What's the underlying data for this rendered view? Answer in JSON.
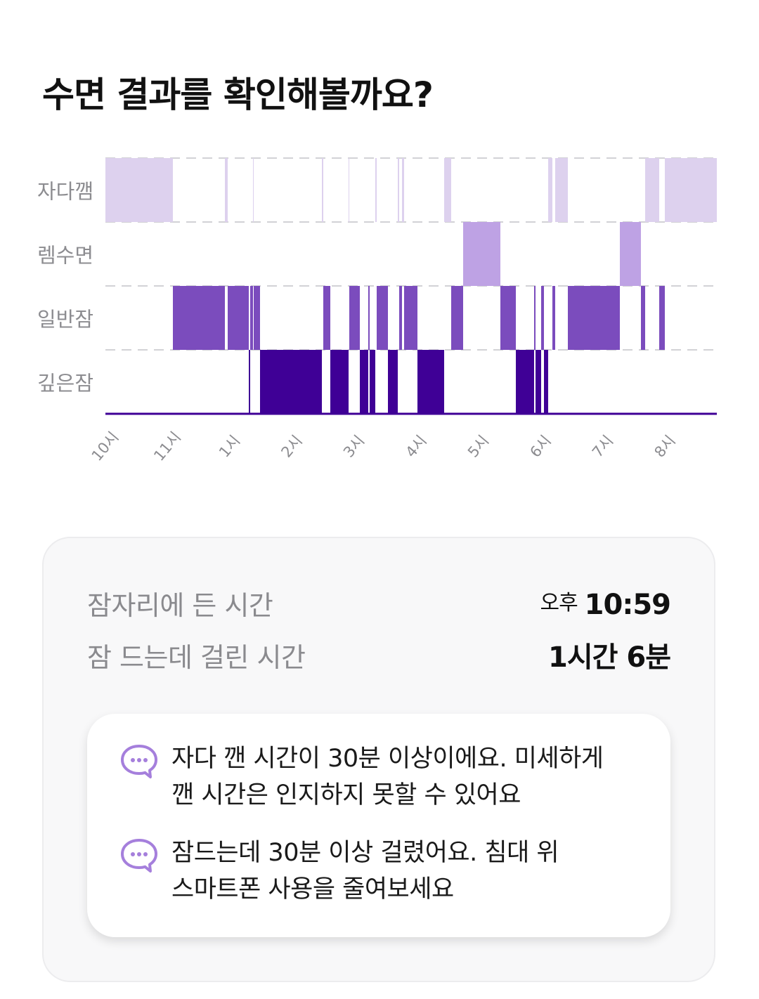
{
  "title": "수면 결과를 확인해볼까요?",
  "chart_data": {
    "type": "bar",
    "stages": [
      "자다깸",
      "렘수면",
      "일반잠",
      "깊은잠"
    ],
    "colors": {
      "자다깸": "#ddd1ee",
      "렘수면": "#bea2e4",
      "일반잠": "#7b4cbd",
      "깊은잠": "#3f0096",
      "grid": "#d2d2d6",
      "tick": "#8c8c90"
    },
    "x_ticks": [
      "10시",
      "11시",
      "1시",
      "2시",
      "3시",
      "4시",
      "5시",
      "6시",
      "7시",
      "8시"
    ],
    "segments": [
      {
        "stage": "자다깸",
        "from": 0,
        "to": 96
      },
      {
        "stage": "일반잠",
        "from": 96,
        "to": 170
      },
      {
        "stage": "자다깸",
        "from": 170,
        "to": 174
      },
      {
        "stage": "일반잠",
        "from": 174,
        "to": 204
      },
      {
        "stage": "깊은잠",
        "from": 204,
        "to": 206
      },
      {
        "stage": "일반잠",
        "from": 206,
        "to": 210
      },
      {
        "stage": "자다깸",
        "from": 210,
        "to": 211
      },
      {
        "stage": "일반잠",
        "from": 211,
        "to": 220
      },
      {
        "stage": "깊은잠",
        "from": 220,
        "to": 308
      },
      {
        "stage": "자다깸",
        "from": 308,
        "to": 310
      },
      {
        "stage": "일반잠",
        "from": 310,
        "to": 320
      },
      {
        "stage": "깊은잠",
        "from": 320,
        "to": 346
      },
      {
        "stage": "자다깸",
        "from": 346,
        "to": 347
      },
      {
        "stage": "일반잠",
        "from": 347,
        "to": 362
      },
      {
        "stage": "깊은잠",
        "from": 362,
        "to": 374
      },
      {
        "stage": "일반잠",
        "from": 374,
        "to": 376
      },
      {
        "stage": "깊은잠",
        "from": 376,
        "to": 384
      },
      {
        "stage": "자다깸",
        "from": 384,
        "to": 386
      },
      {
        "stage": "일반잠",
        "from": 386,
        "to": 402
      },
      {
        "stage": "깊은잠",
        "from": 402,
        "to": 416
      },
      {
        "stage": "자다깸",
        "from": 416,
        "to": 418
      },
      {
        "stage": "일반잠",
        "from": 418,
        "to": 422
      },
      {
        "stage": "자다깸",
        "from": 422,
        "to": 425
      },
      {
        "stage": "일반잠",
        "from": 425,
        "to": 444
      },
      {
        "stage": "깊은잠",
        "from": 444,
        "to": 482
      },
      {
        "stage": "자다깸",
        "from": 482,
        "to": 492
      },
      {
        "stage": "일반잠",
        "from": 492,
        "to": 509
      },
      {
        "stage": "렘수면",
        "from": 509,
        "to": 562
      },
      {
        "stage": "일반잠",
        "from": 562,
        "to": 584
      },
      {
        "stage": "깊은잠",
        "from": 584,
        "to": 610
      },
      {
        "stage": "일반잠",
        "from": 610,
        "to": 612
      },
      {
        "stage": "깊은잠",
        "from": 612,
        "to": 620
      },
      {
        "stage": "일반잠",
        "from": 620,
        "to": 624
      },
      {
        "stage": "깊은잠",
        "from": 624,
        "to": 630
      },
      {
        "stage": "자다깸",
        "from": 630,
        "to": 636
      },
      {
        "stage": "일반잠",
        "from": 636,
        "to": 640
      },
      {
        "stage": "자다깸",
        "from": 640,
        "to": 658
      },
      {
        "stage": "일반잠",
        "from": 658,
        "to": 732
      },
      {
        "stage": "렘수면",
        "from": 732,
        "to": 762
      },
      {
        "stage": "일반잠",
        "from": 762,
        "to": 768
      },
      {
        "stage": "자다깸",
        "from": 768,
        "to": 788
      },
      {
        "stage": "일반잠",
        "from": 788,
        "to": 796
      },
      {
        "stage": "자다깸",
        "from": 796,
        "to": 870
      }
    ]
  },
  "summary": {
    "bedtime_label": "잠자리에 든 시간",
    "bedtime_ampm": "오후",
    "bedtime_value": "10:59",
    "latency_label": "잠 드는데 걸린 시간",
    "latency_value": "1시간 6분"
  },
  "tips": [
    {
      "icon": "chat-bubble-icon",
      "lines": [
        "자다 깬 시간이 30분 이상이에요. 미세하게",
        "깬 시간은 인지하지 못할 수 있어요"
      ]
    },
    {
      "icon": "chat-bubble-icon",
      "lines": [
        "잠드는데 30분 이상 걸렸어요. 침대 위",
        "스마트폰 사용을 줄여보세요"
      ]
    }
  ]
}
